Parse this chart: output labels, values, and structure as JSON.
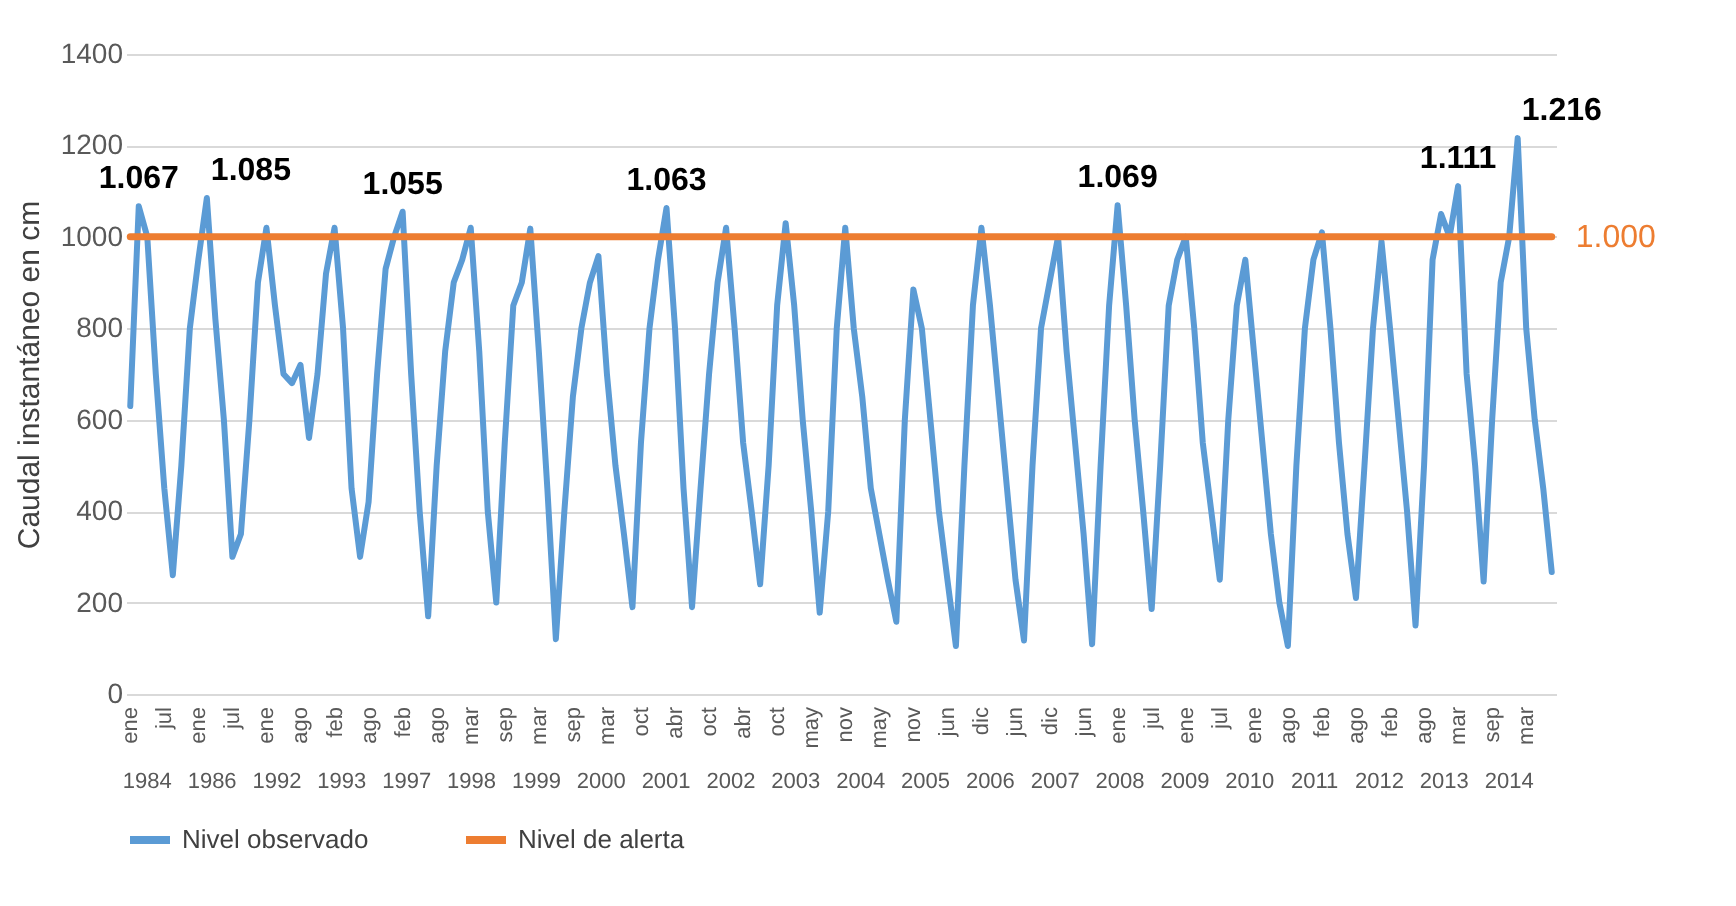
{
  "chart_data": {
    "type": "line",
    "ylabel": "Caudal instantáneo en cm",
    "categories": [
      "ene",
      null,
      null,
      null,
      "jul",
      null,
      null,
      null,
      "ene",
      null,
      null,
      null,
      "jul",
      null,
      null,
      null,
      "ene",
      null,
      null,
      null,
      "ago",
      null,
      null,
      null,
      "feb",
      null,
      null,
      null,
      "ago",
      null,
      null,
      null,
      "feb",
      null,
      null,
      null,
      "ago",
      null,
      null,
      null,
      "mar",
      null,
      null,
      null,
      "sep",
      null,
      null,
      null,
      "mar",
      null,
      null,
      null,
      "sep",
      null,
      null,
      null,
      "mar",
      null,
      null,
      null,
      "oct",
      null,
      null,
      null,
      "abr",
      null,
      null,
      null,
      "oct",
      null,
      null,
      null,
      "abr",
      null,
      null,
      null,
      "oct",
      null,
      null,
      null,
      "may",
      null,
      null,
      null,
      "nov",
      null,
      null,
      null,
      "may",
      null,
      null,
      null,
      "nov",
      null,
      null,
      null,
      "jun",
      null,
      null,
      null,
      "dic",
      null,
      null,
      null,
      "jun",
      null,
      null,
      null,
      "dic",
      null,
      null,
      null,
      "jun",
      null,
      null,
      null,
      "ene",
      null,
      null,
      null,
      "jul",
      null,
      null,
      null,
      "ene",
      null,
      null,
      null,
      "jul",
      null,
      null,
      null,
      "ene",
      null,
      null,
      null,
      "ago",
      null,
      null,
      null,
      "feb",
      null,
      null,
      null,
      "ago",
      null,
      null,
      null,
      "feb",
      null,
      null,
      null,
      "ago",
      null,
      null,
      null,
      "mar",
      null,
      null,
      null,
      "sep",
      null,
      null,
      null,
      "mar",
      null,
      null,
      null
    ],
    "series": [
      {
        "name": "Nivel observado",
        "color": "#5b9bd5",
        "values": [
          630,
          1067,
          1000,
          700,
          450,
          260,
          500,
          800,
          950,
          1085,
          820,
          600,
          300,
          350,
          600,
          900,
          1020,
          850,
          700,
          680,
          720,
          560,
          700,
          920,
          1020,
          800,
          450,
          300,
          420,
          700,
          930,
          1000,
          1055,
          700,
          400,
          170,
          500,
          750,
          900,
          950,
          1020,
          750,
          400,
          200,
          550,
          850,
          900,
          1018,
          750,
          450,
          120,
          400,
          650,
          800,
          900,
          958,
          700,
          500,
          350,
          190,
          550,
          800,
          950,
          1063,
          800,
          450,
          190,
          450,
          700,
          900,
          1020,
          800,
          550,
          400,
          240,
          500,
          850,
          1030,
          850,
          600,
          400,
          178,
          400,
          800,
          1020,
          800,
          650,
          450,
          350,
          250,
          158,
          600,
          885,
          800,
          600,
          400,
          250,
          105,
          500,
          850,
          1020,
          850,
          650,
          450,
          250,
          117,
          500,
          800,
          900,
          1000,
          750,
          550,
          350,
          109,
          500,
          850,
          1069,
          850,
          600,
          400,
          186,
          500,
          850,
          950,
          1000,
          800,
          550,
          400,
          250,
          600,
          850,
          950,
          750,
          550,
          350,
          200,
          105,
          500,
          800,
          950,
          1010,
          800,
          550,
          350,
          210,
          500,
          800,
          990,
          800,
          600,
          400,
          150,
          500,
          950,
          1050,
          1000,
          1111,
          700,
          500,
          246,
          600,
          900,
          1000,
          1216,
          800,
          600,
          450,
          267
        ],
        "value_labels": [
          null,
          "1.067",
          null,
          null,
          null,
          null,
          null,
          null,
          null,
          "1.085",
          null,
          null,
          null,
          null,
          null,
          null,
          null,
          null,
          null,
          null,
          null,
          null,
          null,
          null,
          null,
          null,
          null,
          null,
          null,
          null,
          null,
          null,
          "1.055",
          null,
          null,
          null,
          null,
          null,
          null,
          null,
          null,
          null,
          null,
          null,
          null,
          null,
          null,
          null,
          null,
          null,
          null,
          null,
          null,
          null,
          null,
          null,
          null,
          null,
          null,
          null,
          null,
          null,
          null,
          "1.063",
          null,
          null,
          null,
          null,
          null,
          null,
          null,
          null,
          null,
          null,
          null,
          null,
          null,
          null,
          null,
          null,
          null,
          null,
          null,
          null,
          null,
          null,
          null,
          null,
          null,
          null,
          null,
          null,
          null,
          null,
          null,
          null,
          null,
          null,
          null,
          null,
          null,
          null,
          null,
          null,
          null,
          null,
          null,
          null,
          null,
          null,
          null,
          null,
          null,
          null,
          null,
          null,
          "1.069",
          null,
          null,
          null,
          null,
          null,
          null,
          null,
          null,
          null,
          null,
          null,
          null,
          null,
          null,
          null,
          null,
          null,
          null,
          null,
          null,
          null,
          null,
          null,
          null,
          null,
          null,
          null,
          null,
          null,
          null,
          null,
          null,
          null,
          null,
          null,
          null,
          null,
          null,
          null,
          "1.111",
          null,
          null,
          null,
          null,
          null,
          null,
          "1.216",
          null,
          null,
          null,
          null
        ]
      },
      {
        "name": "Nivel de alerta",
        "color": "#ed7d31",
        "values": [
          1000,
          1000,
          1000,
          1000,
          1000,
          1000,
          1000,
          1000,
          1000,
          1000,
          1000,
          1000,
          1000,
          1000,
          1000,
          1000,
          1000,
          1000,
          1000,
          1000,
          1000,
          1000,
          1000,
          1000,
          1000,
          1000,
          1000,
          1000,
          1000,
          1000,
          1000,
          1000,
          1000,
          1000,
          1000,
          1000,
          1000,
          1000,
          1000,
          1000,
          1000,
          1000,
          1000,
          1000,
          1000,
          1000,
          1000,
          1000,
          1000,
          1000,
          1000,
          1000,
          1000,
          1000,
          1000,
          1000,
          1000,
          1000,
          1000,
          1000,
          1000,
          1000,
          1000,
          1000,
          1000,
          1000,
          1000,
          1000,
          1000,
          1000,
          1000,
          1000,
          1000,
          1000,
          1000,
          1000,
          1000,
          1000,
          1000,
          1000,
          1000,
          1000,
          1000,
          1000,
          1000,
          1000,
          1000,
          1000,
          1000,
          1000,
          1000,
          1000,
          1000,
          1000,
          1000,
          1000,
          1000,
          1000,
          1000,
          1000,
          1000,
          1000,
          1000,
          1000,
          1000,
          1000,
          1000,
          1000,
          1000,
          1000,
          1000,
          1000,
          1000,
          1000,
          1000,
          1000,
          1000,
          1000,
          1000,
          1000,
          1000,
          1000,
          1000,
          1000,
          1000,
          1000,
          1000,
          1000,
          1000,
          1000,
          1000,
          1000,
          1000,
          1000,
          1000,
          1000,
          1000,
          1000,
          1000,
          1000,
          1000,
          1000,
          1000,
          1000,
          1000,
          1000,
          1000,
          1000,
          1000,
          1000,
          1000,
          1000,
          1000,
          1000,
          1000,
          1000,
          1000,
          1000,
          1000,
          1000,
          1000,
          1000,
          1000,
          1000,
          1000,
          1000,
          1000,
          1000
        ],
        "value_labels": [
          null,
          null,
          null,
          null,
          null,
          null,
          null,
          null,
          null,
          null,
          null,
          null,
          null,
          null,
          null,
          null,
          null,
          null,
          null,
          null,
          null,
          null,
          null,
          null,
          null,
          null,
          null,
          null,
          null,
          null,
          null,
          null,
          null,
          null,
          null,
          null,
          null,
          null,
          null,
          null,
          null,
          null,
          null,
          null,
          null,
          null,
          null,
          null,
          null,
          null,
          null,
          null,
          null,
          null,
          null,
          null,
          null,
          null,
          null,
          null,
          null,
          null,
          null,
          null,
          null,
          null,
          null,
          null,
          null,
          null,
          null,
          null,
          null,
          null,
          null,
          null,
          null,
          null,
          null,
          null,
          null,
          null,
          null,
          null,
          null,
          null,
          null,
          null,
          null,
          null,
          null,
          null,
          null,
          null,
          null,
          null,
          null,
          null,
          null,
          null,
          null,
          null,
          null,
          null,
          null,
          null,
          null,
          null,
          null,
          null,
          null,
          null,
          null,
          null,
          null,
          null,
          null,
          null,
          null,
          null,
          null,
          null,
          null,
          null,
          null,
          null,
          null,
          null,
          null,
          null,
          null,
          null,
          null,
          null,
          null,
          null,
          null,
          null,
          null,
          null,
          null,
          null,
          null,
          null,
          null,
          null,
          null,
          null,
          null,
          null,
          null,
          null,
          null,
          null,
          null,
          null,
          null,
          null,
          null,
          null,
          null,
          null,
          null,
          null,
          null,
          null,
          null,
          "1.000"
        ]
      }
    ],
    "annotations": [
      "1984",
      "1986",
      "1992",
      "1993",
      "1997",
      "1998",
      "1999",
      "2000",
      "2001",
      "2002",
      "2003",
      "2004",
      "2005",
      "2006",
      "2007",
      "2008",
      "2009",
      "2010",
      "2011",
      "2012",
      "2013",
      "2014"
    ],
    "ylim": [
      0,
      1400
    ],
    "yticks": [
      0,
      200,
      400,
      600,
      800,
      1000,
      1200,
      1400
    ],
    "grid": "y",
    "legend": "bottom"
  }
}
